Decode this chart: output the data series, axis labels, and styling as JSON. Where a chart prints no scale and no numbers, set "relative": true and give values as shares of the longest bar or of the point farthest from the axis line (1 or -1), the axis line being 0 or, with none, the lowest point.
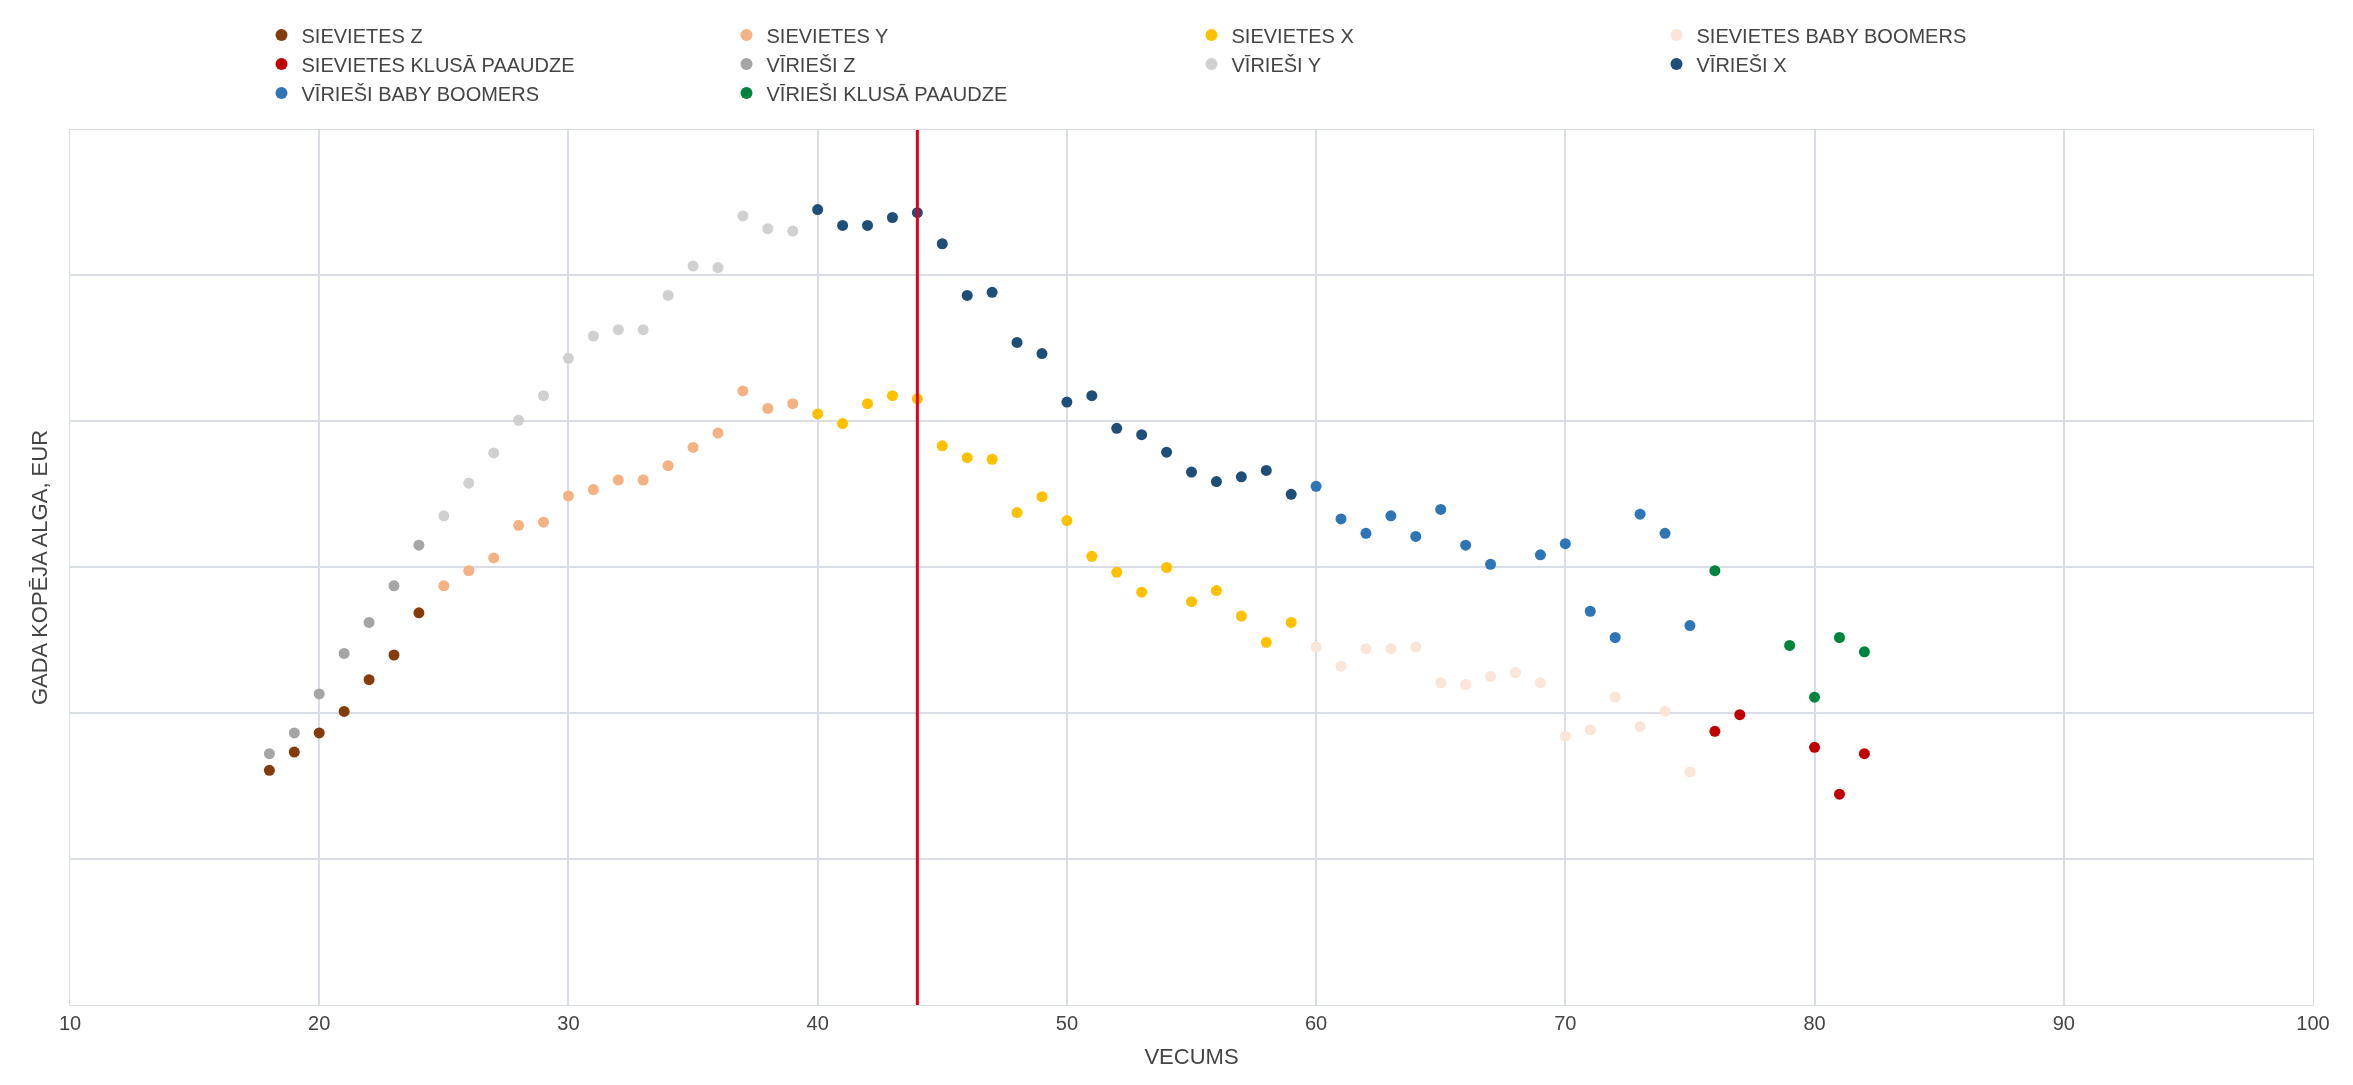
{
  "chart_data": {
    "type": "scatter",
    "xlabel": "VECUMS",
    "ylabel": "GADA KOPĒJA ALGA, EUR",
    "relative": true,
    "xlim": [
      10,
      100
    ],
    "xticks": [
      10,
      20,
      30,
      40,
      50,
      60,
      70,
      80,
      90,
      100
    ],
    "grid": true,
    "legend": "top",
    "marker": "circle",
    "ref_lines": [
      {
        "axis": "x",
        "value": 44,
        "color": "#e3001b",
        "line_style": "solid"
      }
    ],
    "series": [
      {
        "name": "SIEVIETES Z",
        "color": "#843c0c",
        "x": [
          18,
          19,
          20,
          21,
          22,
          23,
          24
        ],
        "values": [
          0.295,
          0.318,
          0.342,
          0.369,
          0.409,
          0.44,
          0.493
        ]
      },
      {
        "name": "SIEVIETES Y",
        "color": "#f4b183",
        "x": [
          25,
          26,
          27,
          28,
          29,
          30,
          31,
          32,
          33,
          34,
          35,
          36,
          37,
          38,
          39
        ],
        "values": [
          0.527,
          0.546,
          0.562,
          0.603,
          0.607,
          0.64,
          0.648,
          0.66,
          0.66,
          0.678,
          0.701,
          0.719,
          0.772,
          0.75,
          0.756
        ]
      },
      {
        "name": "SIEVIETES X",
        "color": "#ffc000",
        "x": [
          40,
          41,
          42,
          43,
          44,
          45,
          46,
          47,
          48,
          49,
          50,
          51,
          52,
          53,
          54,
          55,
          56,
          57,
          58,
          59
        ],
        "values": [
          0.743,
          0.731,
          0.756,
          0.766,
          0.762,
          0.703,
          0.688,
          0.686,
          0.619,
          0.639,
          0.609,
          0.564,
          0.544,
          0.519,
          0.55,
          0.507,
          0.521,
          0.489,
          0.456,
          0.481
        ]
      },
      {
        "name": "SIEVIETES BABY BOOMERS",
        "color": "#fbe5d6",
        "x": [
          60,
          61,
          62,
          63,
          64,
          65,
          66,
          67,
          68,
          69,
          70,
          71,
          72,
          73,
          74,
          75
        ],
        "values": [
          0.45,
          0.426,
          0.448,
          0.448,
          0.45,
          0.405,
          0.403,
          0.413,
          0.418,
          0.405,
          0.338,
          0.346,
          0.387,
          0.35,
          0.369,
          0.293
        ]
      },
      {
        "name": "SIEVIETES KLUSĀ PAAUDZE",
        "color": "#c00000",
        "x": [
          76,
          77,
          80,
          81,
          82
        ],
        "values": [
          0.344,
          0.365,
          0.324,
          0.265,
          0.316
        ]
      },
      {
        "name": "VĪRIEŠI Z",
        "color": "#a5a5a5",
        "x": [
          18,
          19,
          20,
          21,
          22,
          23,
          24
        ],
        "values": [
          0.316,
          0.342,
          0.391,
          0.442,
          0.481,
          0.527,
          0.578
        ]
      },
      {
        "name": "VĪRIEŠI Y",
        "color": "#d0d0d0",
        "x": [
          25,
          26,
          27,
          28,
          29,
          30,
          31,
          32,
          33,
          34,
          35,
          36,
          37,
          38,
          39
        ],
        "values": [
          0.615,
          0.656,
          0.694,
          0.735,
          0.766,
          0.813,
          0.841,
          0.849,
          0.849,
          0.892,
          0.929,
          0.927,
          0.992,
          0.976,
          0.973
        ]
      },
      {
        "name": "VĪRIEŠI X",
        "color": "#1f4e79",
        "x": [
          40,
          41,
          42,
          43,
          44,
          45,
          46,
          47,
          48,
          49,
          50,
          51,
          52,
          53,
          54,
          55,
          56,
          57,
          58,
          59
        ],
        "values": [
          1.0,
          0.98,
          0.98,
          0.99,
          0.996,
          0.957,
          0.892,
          0.896,
          0.833,
          0.819,
          0.758,
          0.766,
          0.725,
          0.717,
          0.695,
          0.67,
          0.658,
          0.664,
          0.672,
          0.642
        ]
      },
      {
        "name": "VĪRIEŠI BABY BOOMERS",
        "color": "#2e75b6",
        "x": [
          60,
          61,
          62,
          63,
          64,
          65,
          66,
          67,
          69,
          70,
          71,
          72,
          73,
          74,
          75
        ],
        "values": [
          0.652,
          0.611,
          0.593,
          0.615,
          0.589,
          0.623,
          0.578,
          0.554,
          0.566,
          0.58,
          0.495,
          0.462,
          0.617,
          0.593,
          0.477
        ]
      },
      {
        "name": "VĪRIEŠI KLUSĀ PAAUDZE",
        "color": "#00843d",
        "x": [
          76,
          79,
          80,
          81,
          82
        ],
        "values": [
          0.546,
          0.452,
          0.387,
          0.462,
          0.444
        ]
      }
    ]
  }
}
